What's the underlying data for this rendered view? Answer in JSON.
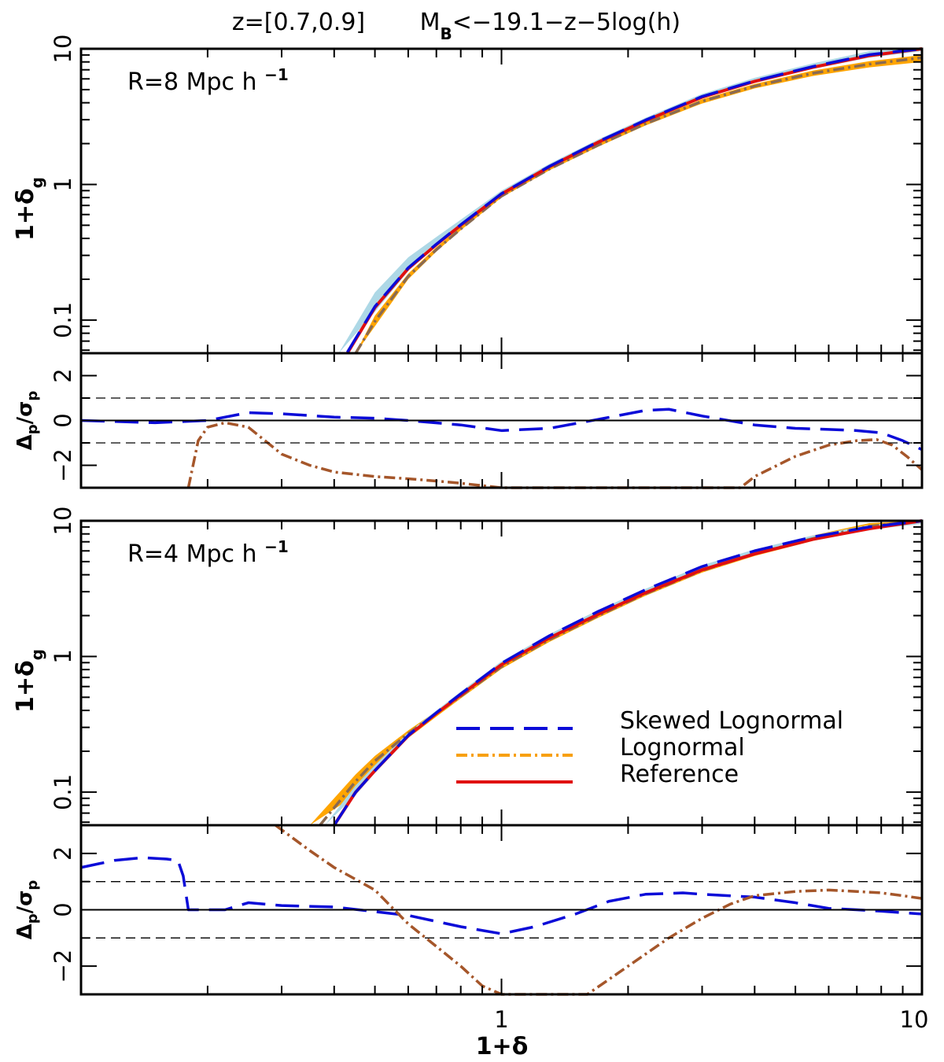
{
  "chart_data": {
    "type": "line",
    "title": "z=[0.7,0.9]      M_B<−19.1−z−5log(h)",
    "xlabel": "1+δ",
    "x_scale": "log",
    "xlim": [
      0.1,
      10
    ],
    "x_tick_labels": [
      "1",
      "10"
    ],
    "grid": false,
    "legend_position": "center-right (lower main panel)",
    "colors": {
      "skewed": "#0b0bd8",
      "lognormal": "#f8a010",
      "reference": "#e01010",
      "residual_lognormal": "#a5562a",
      "band_skewed": "#add8e6",
      "band_lognormal": "#ffa500"
    },
    "legend": [
      {
        "label": "Skewed Lognormal",
        "style": "dashed",
        "color": "#0b0bd8"
      },
      {
        "label": "Lognormal",
        "style": "dash-dot",
        "color": "#f8a010"
      },
      {
        "label": "Reference",
        "style": "solid",
        "color": "#e01010"
      }
    ],
    "panels": [
      {
        "annotation": "R=8 Mpc h",
        "annotation_sup": "−1",
        "main": {
          "ylabel": "1+δ",
          "ylabel_sub": "g",
          "y_scale": "log",
          "ylim": [
            0.057,
            10
          ],
          "y_tick_labels": [
            "0.1",
            "1",
            "10"
          ],
          "series": [
            {
              "name": "Reference",
              "style": "solid",
              "x": [
                0.43,
                0.5,
                0.6,
                0.7,
                0.8,
                1.0,
                1.3,
                1.7,
                2.2,
                3.0,
                4.0,
                5.5,
                7.5,
                10.0
              ],
              "y": [
                0.057,
                0.124,
                0.24,
                0.36,
                0.5,
                0.85,
                1.35,
                2.05,
                2.95,
                4.4,
                5.75,
                7.3,
                8.9,
                10.2
              ]
            },
            {
              "name": "Skewed Lognormal",
              "style": "dashed",
              "x": [
                0.43,
                0.5,
                0.6,
                0.7,
                0.8,
                1.0,
                1.3,
                1.7,
                2.2,
                3.0,
                4.0,
                5.5,
                7.5,
                10.0
              ],
              "y": [
                0.058,
                0.126,
                0.243,
                0.363,
                0.505,
                0.855,
                1.36,
                2.07,
                2.98,
                4.45,
                5.8,
                7.4,
                9.05,
                10.5
              ]
            },
            {
              "name": "Lognormal",
              "style": "dash-dot",
              "x": [
                0.45,
                0.5,
                0.6,
                0.7,
                0.8,
                1.0,
                1.3,
                1.7,
                2.2,
                3.0,
                4.0,
                5.5,
                7.5,
                10.0
              ],
              "y": [
                0.057,
                0.098,
                0.21,
                0.33,
                0.47,
                0.82,
                1.3,
                1.95,
                2.8,
                4.1,
                5.3,
                6.6,
                7.7,
                8.6
              ]
            }
          ],
          "bands": [
            {
              "name": "Skewed Lognormal range",
              "x": [
                0.41,
                0.5,
                0.6,
                0.7,
                0.8,
                1.0,
                1.3,
                1.7,
                2.2,
                3.0,
                4.0,
                5.5,
                7.5,
                10.0
              ],
              "lower": [
                0.057,
                0.115,
                0.23,
                0.35,
                0.49,
                0.83,
                1.32,
                2.0,
                2.9,
                4.3,
                5.6,
                7.1,
                8.6,
                9.6
              ],
              "upper": [
                0.057,
                0.16,
                0.29,
                0.41,
                0.55,
                0.9,
                1.42,
                2.15,
                3.1,
                4.65,
                6.1,
                7.8,
                9.6,
                10.8
              ]
            },
            {
              "name": "Lognormal range",
              "x": [
                0.45,
                0.5,
                0.6,
                0.7,
                0.8,
                1.0,
                1.3,
                1.7,
                2.2,
                3.0,
                4.0,
                5.5,
                7.5,
                10.0
              ],
              "lower": [
                0.057,
                0.09,
                0.2,
                0.32,
                0.46,
                0.8,
                1.27,
                1.9,
                2.72,
                3.95,
                5.1,
                6.3,
                7.3,
                8.0
              ],
              "upper": [
                0.057,
                0.108,
                0.22,
                0.345,
                0.485,
                0.84,
                1.33,
                2.0,
                2.88,
                4.25,
                5.5,
                6.9,
                8.1,
                9.0
              ]
            }
          ]
        },
        "residual": {
          "ylabel": "Δ",
          "ylabel_sub": "p",
          "ylabel_den": "σ",
          "ylim": [
            -3,
            3
          ],
          "y_tick_labels": [
            "−2",
            "0",
            "2"
          ],
          "series": [
            {
              "name": "Skewed Lognormal",
              "style": "dashed",
              "x": [
                0.1,
                0.15,
                0.2,
                0.25,
                0.3,
                0.4,
                0.5,
                0.6,
                0.8,
                1.0,
                1.3,
                1.7,
                2.2,
                2.5,
                3.0,
                4.0,
                5.0,
                6.0,
                7.0,
                8.0,
                9.0,
                10.0
              ],
              "y": [
                0.0,
                -0.1,
                0.0,
                0.35,
                0.3,
                0.15,
                0.1,
                0.0,
                -0.2,
                -0.45,
                -0.35,
                0.05,
                0.45,
                0.5,
                0.2,
                -0.2,
                -0.35,
                -0.4,
                -0.45,
                -0.55,
                -0.9,
                -1.3
              ]
            },
            {
              "name": "Lognormal",
              "style": "dash-dot",
              "x": [
                0.18,
                0.19,
                0.2,
                0.22,
                0.25,
                0.3,
                0.35,
                0.4,
                0.5,
                0.6,
                0.7,
                0.8,
                1.0,
                1.2,
                3.7,
                4.0,
                5.0,
                6.0,
                7.0,
                7.8,
                8.5,
                9.2,
                10.0
              ],
              "y": [
                -3.0,
                -0.9,
                -0.3,
                -0.1,
                -0.3,
                -1.5,
                -2.0,
                -2.3,
                -2.5,
                -2.6,
                -2.7,
                -2.8,
                -3.0,
                -3.0,
                -3.0,
                -2.5,
                -1.6,
                -1.1,
                -0.9,
                -0.85,
                -1.1,
                -1.6,
                -2.2
              ]
            }
          ]
        }
      },
      {
        "annotation": "R=4 Mpc h",
        "annotation_sup": "−1",
        "main": {
          "ylabel": "1+δ",
          "ylabel_sub": "g",
          "y_scale": "log",
          "ylim": [
            0.057,
            10
          ],
          "y_tick_labels": [
            "0.1",
            "1",
            "10"
          ],
          "series": [
            {
              "name": "Reference",
              "style": "solid",
              "x": [
                0.4,
                0.45,
                0.5,
                0.6,
                0.7,
                0.8,
                1.0,
                1.3,
                1.7,
                2.2,
                3.0,
                4.0,
                5.5,
                7.5,
                10.0
              ],
              "y": [
                0.057,
                0.1,
                0.144,
                0.26,
                0.38,
                0.52,
                0.87,
                1.37,
                2.05,
                2.95,
                4.35,
                5.7,
                7.3,
                8.75,
                10.0
              ]
            },
            {
              "name": "Skewed Lognormal",
              "style": "dashed",
              "x": [
                0.4,
                0.45,
                0.5,
                0.6,
                0.7,
                0.8,
                1.0,
                1.3,
                1.7,
                2.2,
                3.0,
                4.0,
                5.5,
                7.5,
                10.0
              ],
              "y": [
                0.057,
                0.1,
                0.144,
                0.262,
                0.385,
                0.53,
                0.89,
                1.42,
                2.15,
                3.1,
                4.6,
                6.0,
                7.6,
                9.0,
                10.0
              ]
            },
            {
              "name": "Lognormal",
              "style": "dash-dot",
              "x": [
                0.37,
                0.45,
                0.5,
                0.6,
                0.7,
                0.8,
                1.0,
                1.3,
                1.7,
                2.2,
                3.0,
                4.0,
                5.5,
                7.5,
                10.0
              ],
              "y": [
                0.057,
                0.12,
                0.17,
                0.27,
                0.38,
                0.51,
                0.84,
                1.33,
                2.0,
                2.9,
                4.3,
                5.7,
                7.4,
                9.1,
                10.7
              ]
            }
          ],
          "bands": [
            {
              "name": "Lognormal range",
              "x": [
                0.35,
                0.45,
                0.5,
                0.6,
                0.7,
                0.8,
                1.0,
                1.3,
                1.7,
                2.2,
                3.0,
                4.0,
                5.5,
                7.5,
                10.0
              ],
              "lower": [
                0.057,
                0.095,
                0.14,
                0.25,
                0.36,
                0.49,
                0.81,
                1.28,
                1.93,
                2.8,
                4.15,
                5.5,
                7.1,
                8.7,
                10.2
              ],
              "upper": [
                0.057,
                0.135,
                0.185,
                0.285,
                0.395,
                0.53,
                0.87,
                1.38,
                2.07,
                3.0,
                4.45,
                5.95,
                7.8,
                9.6,
                11.0
              ]
            },
            {
              "name": "Skewed Lognormal range",
              "x": [
                0.38,
                0.45,
                0.5,
                0.6,
                0.7,
                0.8,
                1.0,
                1.3,
                1.7,
                2.2,
                3.0,
                4.0,
                5.5,
                7.5,
                10.0
              ],
              "lower": [
                0.057,
                0.095,
                0.138,
                0.25,
                0.37,
                0.5,
                0.85,
                1.35,
                2.02,
                2.9,
                4.3,
                5.6,
                7.2,
                8.6,
                9.5
              ],
              "upper": [
                0.057,
                0.112,
                0.158,
                0.275,
                0.4,
                0.55,
                0.92,
                1.46,
                2.2,
                3.15,
                4.7,
                6.15,
                7.8,
                9.3,
                10.4
              ]
            }
          ]
        },
        "residual": {
          "ylabel": "Δ",
          "ylabel_sub": "p",
          "ylabel_den": "σ",
          "ylim": [
            -3,
            3
          ],
          "y_tick_labels": [
            "−2",
            "0",
            "2"
          ],
          "series": [
            {
              "name": "Skewed Lognormal",
              "style": "dashed",
              "x": [
                0.1,
                0.12,
                0.14,
                0.16,
                0.17,
                0.175,
                0.18,
                0.19,
                0.2,
                0.22,
                0.25,
                0.3,
                0.4,
                0.6,
                0.8,
                1.0,
                1.2,
                1.5,
                1.8,
                2.2,
                2.7,
                3.0,
                4.0,
                5.0,
                6.0,
                7.0,
                8.0,
                10.0
              ],
              "y": [
                1.5,
                1.75,
                1.85,
                1.8,
                1.75,
                1.2,
                0.0,
                0.0,
                0.0,
                0.0,
                0.25,
                0.15,
                0.1,
                -0.2,
                -0.6,
                -0.85,
                -0.6,
                -0.15,
                0.3,
                0.55,
                0.6,
                0.55,
                0.45,
                0.25,
                0.05,
                0.0,
                -0.05,
                -0.15
              ]
            },
            {
              "name": "Lognormal",
              "style": "dash-dot",
              "x": [
                0.29,
                0.35,
                0.4,
                0.5,
                0.6,
                0.7,
                0.8,
                0.9,
                1.0,
                1.3,
                1.6,
                2.0,
                2.5,
                3.0,
                3.5,
                4.0,
                5.0,
                6.0,
                7.0,
                8.0,
                9.0,
                10.0
              ],
              "y": [
                3.0,
                2.1,
                1.5,
                0.7,
                -0.5,
                -1.3,
                -2.0,
                -2.7,
                -3.0,
                -3.0,
                -3.0,
                -2.0,
                -1.0,
                -0.3,
                0.2,
                0.5,
                0.65,
                0.7,
                0.65,
                0.6,
                0.5,
                0.4
              ]
            }
          ]
        }
      }
    ]
  }
}
